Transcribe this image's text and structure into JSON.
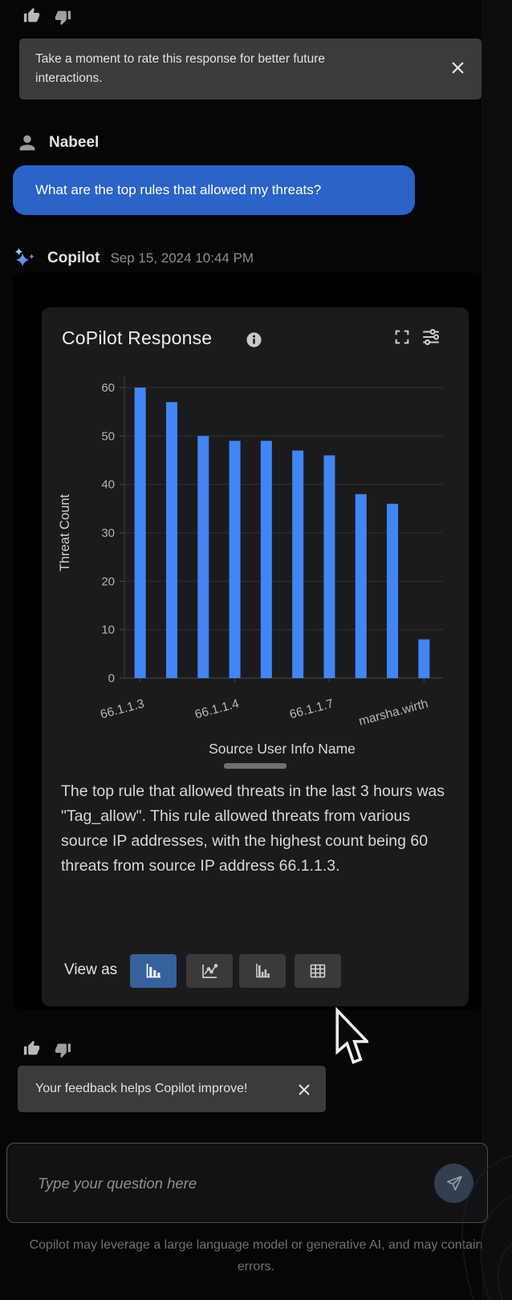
{
  "feedback": {
    "rate_prompt": "Take a moment to rate this response for better future interactions.",
    "improve_toast": "Your feedback helps Copilot improve!"
  },
  "user_message": {
    "author": "Nabeel",
    "text": "What are the top rules that allowed my threats?"
  },
  "assistant_message": {
    "author": "Copilot",
    "timestamp": "Sep 15, 2024 10:44 PM"
  },
  "response_card": {
    "title": "CoPilot Response",
    "summary": "The top rule that allowed threats in the last 3 hours was \"Tag_allow\". This rule allowed threats from various source IP addresses, with the highest count being 60 threats from source IP address 66.1.1.3.",
    "view_as_label": "View as",
    "view_options": [
      {
        "id": "bar-chart",
        "selected": true
      },
      {
        "id": "line-chart",
        "selected": false
      },
      {
        "id": "column-chart",
        "selected": false
      },
      {
        "id": "table-view",
        "selected": false
      }
    ],
    "selected_view": "bar-chart"
  },
  "chart_data": {
    "type": "bar",
    "title": "",
    "xlabel": "Source User Info Name",
    "ylabel": "Threat Count",
    "ylim": [
      0,
      60
    ],
    "y_ticks": [
      0,
      10,
      20,
      30,
      40,
      50,
      60
    ],
    "values": [
      60,
      57,
      50,
      49,
      49,
      47,
      46,
      38,
      36,
      8
    ],
    "x_tick_labels": [
      {
        "index": 0,
        "label": "66.1.1.3"
      },
      {
        "index": 3,
        "label": "66.1.1.4"
      },
      {
        "index": 6,
        "label": "66.1.1.7"
      },
      {
        "index": 9,
        "label": "marsha.wirth"
      }
    ],
    "grid": true,
    "legend": false,
    "bar_color": "#4285f4"
  },
  "composer": {
    "placeholder": "Type your question here"
  },
  "disclaimer": "Copilot may leverage a large language model or generative AI, and may contain errors.",
  "icons": [
    "thumbs-up",
    "thumbs-down",
    "close",
    "user-avatar",
    "sparkles",
    "info",
    "expand",
    "sliders",
    "bar-chart",
    "line-chart",
    "column-chart",
    "table",
    "send-plane",
    "mouse-cursor"
  ],
  "colors": {
    "user_bubble": "#2b63c7",
    "bar_blue": "#4285f4",
    "selected_view_bg": "#36619c",
    "banner_bg": "#3b3b3b"
  }
}
